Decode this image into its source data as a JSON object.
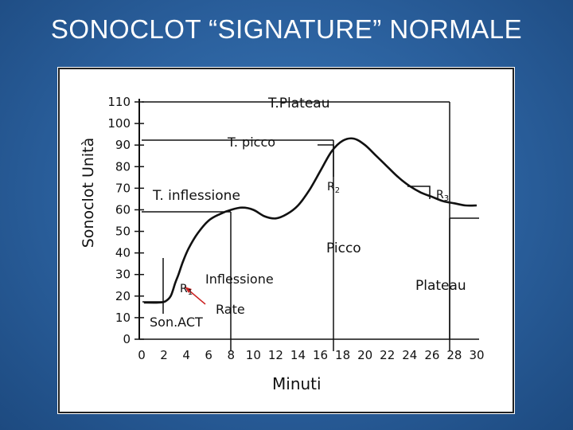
{
  "slide": {
    "title": "SONOCLOT “SIGNATURE” NORMALE"
  },
  "chart_data": {
    "type": "line",
    "xlabel": "Minuti",
    "ylabel": "Sonoclot Unità",
    "xlim": [
      0,
      30
    ],
    "ylim": [
      0,
      110
    ],
    "xticks": [
      0,
      2,
      4,
      6,
      8,
      10,
      12,
      14,
      16,
      18,
      20,
      22,
      24,
      26,
      28,
      30
    ],
    "yticks": [
      0,
      10,
      20,
      30,
      40,
      50,
      60,
      70,
      80,
      90,
      100,
      110
    ],
    "grid": false,
    "series": [
      {
        "values": [
          [
            0.2,
            17
          ],
          [
            1.5,
            17
          ],
          [
            2.1,
            17.5
          ],
          [
            2.6,
            20
          ],
          [
            3.0,
            26
          ],
          [
            3.3,
            30
          ],
          [
            3.7,
            36
          ],
          [
            4.2,
            42
          ],
          [
            5.0,
            49
          ],
          [
            6.0,
            55
          ],
          [
            7.0,
            58
          ],
          [
            8.0,
            60
          ],
          [
            9.0,
            61
          ],
          [
            10.0,
            60
          ],
          [
            11.0,
            57
          ],
          [
            12.0,
            56
          ],
          [
            13.0,
            58
          ],
          [
            14.0,
            62
          ],
          [
            15.0,
            69
          ],
          [
            16.0,
            78
          ],
          [
            17.0,
            87
          ],
          [
            18.0,
            92
          ],
          [
            19.0,
            93
          ],
          [
            20.0,
            90
          ],
          [
            21.0,
            85
          ],
          [
            22.0,
            80
          ],
          [
            23.0,
            75
          ],
          [
            24.0,
            71
          ],
          [
            25.0,
            68
          ],
          [
            26.0,
            66
          ],
          [
            27.0,
            64
          ],
          [
            28.0,
            63
          ],
          [
            29.0,
            62
          ],
          [
            30.0,
            62
          ]
        ]
      }
    ],
    "annotations": [
      {
        "id": "t-plateau",
        "text": "T.Plateau"
      },
      {
        "id": "t-picco",
        "text": "T. picco"
      },
      {
        "id": "t-inflessione",
        "text": "T. inflessione"
      },
      {
        "id": "r2",
        "text": "R",
        "sub": "2"
      },
      {
        "id": "r3",
        "text": "R",
        "sub": "3"
      },
      {
        "id": "picco",
        "text": "Picco"
      },
      {
        "id": "r1",
        "text": "R",
        "sub": "1"
      },
      {
        "id": "inflessione",
        "text": "Inflessione"
      },
      {
        "id": "rate",
        "text": "Rate"
      },
      {
        "id": "sonact",
        "text": "Son.ACT"
      },
      {
        "id": "plateau",
        "text": "Plateau"
      }
    ],
    "colors": {
      "curve": "#111111",
      "text": "#111111",
      "accent": "#cc2222",
      "background": "#ffffff"
    }
  }
}
